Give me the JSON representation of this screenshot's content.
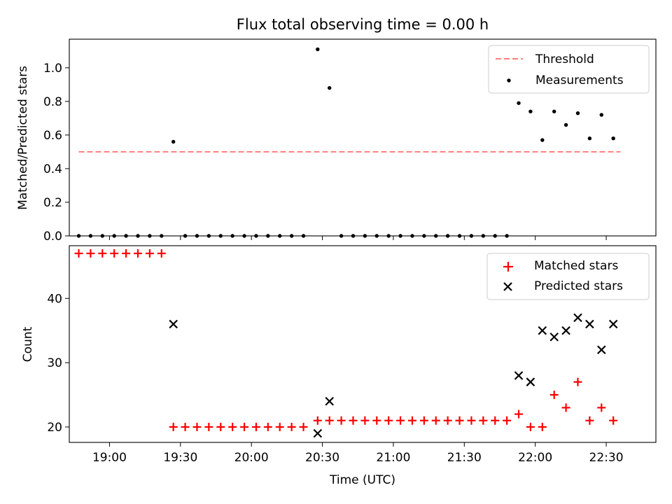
{
  "chart_data": [
    {
      "type": "scatter",
      "title": "Flux total observing time = 0.00 h",
      "xlabel": "",
      "ylabel": "Matched/Predicted stars",
      "xlim": [
        "18:43",
        "22:51"
      ],
      "ylim": [
        0,
        1.17
      ],
      "yticks": [
        "0.0",
        "0.2",
        "0.4",
        "0.6",
        "0.8",
        "1.0"
      ],
      "legend_position": "top-right",
      "threshold": {
        "name": "Threshold",
        "color": "#ff7f7f",
        "style": "dashed",
        "value": 0.5,
        "x": [
          "18:47",
          "22:36"
        ]
      },
      "series": [
        {
          "name": "Measurements",
          "color": "#000000",
          "marker": "dot",
          "points": [
            [
              "18:47",
              0.0
            ],
            [
              "18:52",
              0.0
            ],
            [
              "18:57",
              0.0
            ],
            [
              "19:02",
              0.0
            ],
            [
              "19:07",
              0.0
            ],
            [
              "19:12",
              0.0
            ],
            [
              "19:17",
              0.0
            ],
            [
              "19:22",
              0.0
            ],
            [
              "19:27",
              0.56
            ],
            [
              "19:32",
              0.0
            ],
            [
              "19:37",
              0.0
            ],
            [
              "19:42",
              0.0
            ],
            [
              "19:47",
              0.0
            ],
            [
              "19:52",
              0.0
            ],
            [
              "19:57",
              0.0
            ],
            [
              "20:02",
              0.0
            ],
            [
              "20:07",
              0.0
            ],
            [
              "20:12",
              0.0
            ],
            [
              "20:17",
              0.0
            ],
            [
              "20:22",
              0.0
            ],
            [
              "20:28",
              1.11
            ],
            [
              "20:33",
              0.88
            ],
            [
              "20:38",
              0.0
            ],
            [
              "20:43",
              0.0
            ],
            [
              "20:48",
              0.0
            ],
            [
              "20:53",
              0.0
            ],
            [
              "20:58",
              0.0
            ],
            [
              "21:03",
              0.0
            ],
            [
              "21:08",
              0.0
            ],
            [
              "21:13",
              0.0
            ],
            [
              "21:18",
              0.0
            ],
            [
              "21:23",
              0.0
            ],
            [
              "21:28",
              0.0
            ],
            [
              "21:33",
              0.0
            ],
            [
              "21:38",
              0.0
            ],
            [
              "21:43",
              0.0
            ],
            [
              "21:48",
              0.0
            ],
            [
              "21:53",
              0.79
            ],
            [
              "21:58",
              0.74
            ],
            [
              "22:03",
              0.57
            ],
            [
              "22:08",
              0.74
            ],
            [
              "22:13",
              0.66
            ],
            [
              "22:18",
              0.73
            ],
            [
              "22:23",
              0.58
            ],
            [
              "22:28",
              0.72
            ],
            [
              "22:33",
              0.58
            ]
          ]
        }
      ]
    },
    {
      "type": "scatter",
      "title": "",
      "xlabel": "Time (UTC)",
      "ylabel": "Count",
      "xlim": [
        "18:43",
        "22:51"
      ],
      "ylim": [
        17.6,
        48.2
      ],
      "yticks": [
        "20",
        "30",
        "40"
      ],
      "xticks": [
        "19:00",
        "19:30",
        "20:00",
        "20:30",
        "21:00",
        "21:30",
        "22:00",
        "22:30"
      ],
      "legend_position": "top-right",
      "series": [
        {
          "name": "Matched stars",
          "color": "#ff0000",
          "marker": "plus",
          "points": [
            [
              "18:47",
              47
            ],
            [
              "18:52",
              47
            ],
            [
              "18:57",
              47
            ],
            [
              "19:02",
              47
            ],
            [
              "19:07",
              47
            ],
            [
              "19:12",
              47
            ],
            [
              "19:17",
              47
            ],
            [
              "19:22",
              47
            ],
            [
              "19:27",
              20
            ],
            [
              "19:32",
              20
            ],
            [
              "19:37",
              20
            ],
            [
              "19:42",
              20
            ],
            [
              "19:47",
              20
            ],
            [
              "19:52",
              20
            ],
            [
              "19:57",
              20
            ],
            [
              "20:02",
              20
            ],
            [
              "20:07",
              20
            ],
            [
              "20:12",
              20
            ],
            [
              "20:17",
              20
            ],
            [
              "20:22",
              20
            ],
            [
              "20:28",
              21
            ],
            [
              "20:33",
              21
            ],
            [
              "20:38",
              21
            ],
            [
              "20:43",
              21
            ],
            [
              "20:48",
              21
            ],
            [
              "20:53",
              21
            ],
            [
              "20:58",
              21
            ],
            [
              "21:03",
              21
            ],
            [
              "21:08",
              21
            ],
            [
              "21:13",
              21
            ],
            [
              "21:18",
              21
            ],
            [
              "21:23",
              21
            ],
            [
              "21:28",
              21
            ],
            [
              "21:33",
              21
            ],
            [
              "21:38",
              21
            ],
            [
              "21:43",
              21
            ],
            [
              "21:48",
              21
            ],
            [
              "21:53",
              22
            ],
            [
              "21:58",
              20
            ],
            [
              "22:03",
              20
            ],
            [
              "22:08",
              25
            ],
            [
              "22:13",
              23
            ],
            [
              "22:18",
              27
            ],
            [
              "22:23",
              21
            ],
            [
              "22:28",
              23
            ],
            [
              "22:33",
              21
            ]
          ]
        },
        {
          "name": "Predicted stars",
          "color": "#000000",
          "marker": "x",
          "points": [
            [
              "19:27",
              36
            ],
            [
              "20:28",
              19
            ],
            [
              "20:33",
              24
            ],
            [
              "21:53",
              28
            ],
            [
              "21:58",
              27
            ],
            [
              "22:03",
              35
            ],
            [
              "22:08",
              34
            ],
            [
              "22:13",
              35
            ],
            [
              "22:18",
              37
            ],
            [
              "22:23",
              36
            ],
            [
              "22:28",
              32
            ],
            [
              "22:33",
              36
            ]
          ]
        }
      ]
    }
  ]
}
